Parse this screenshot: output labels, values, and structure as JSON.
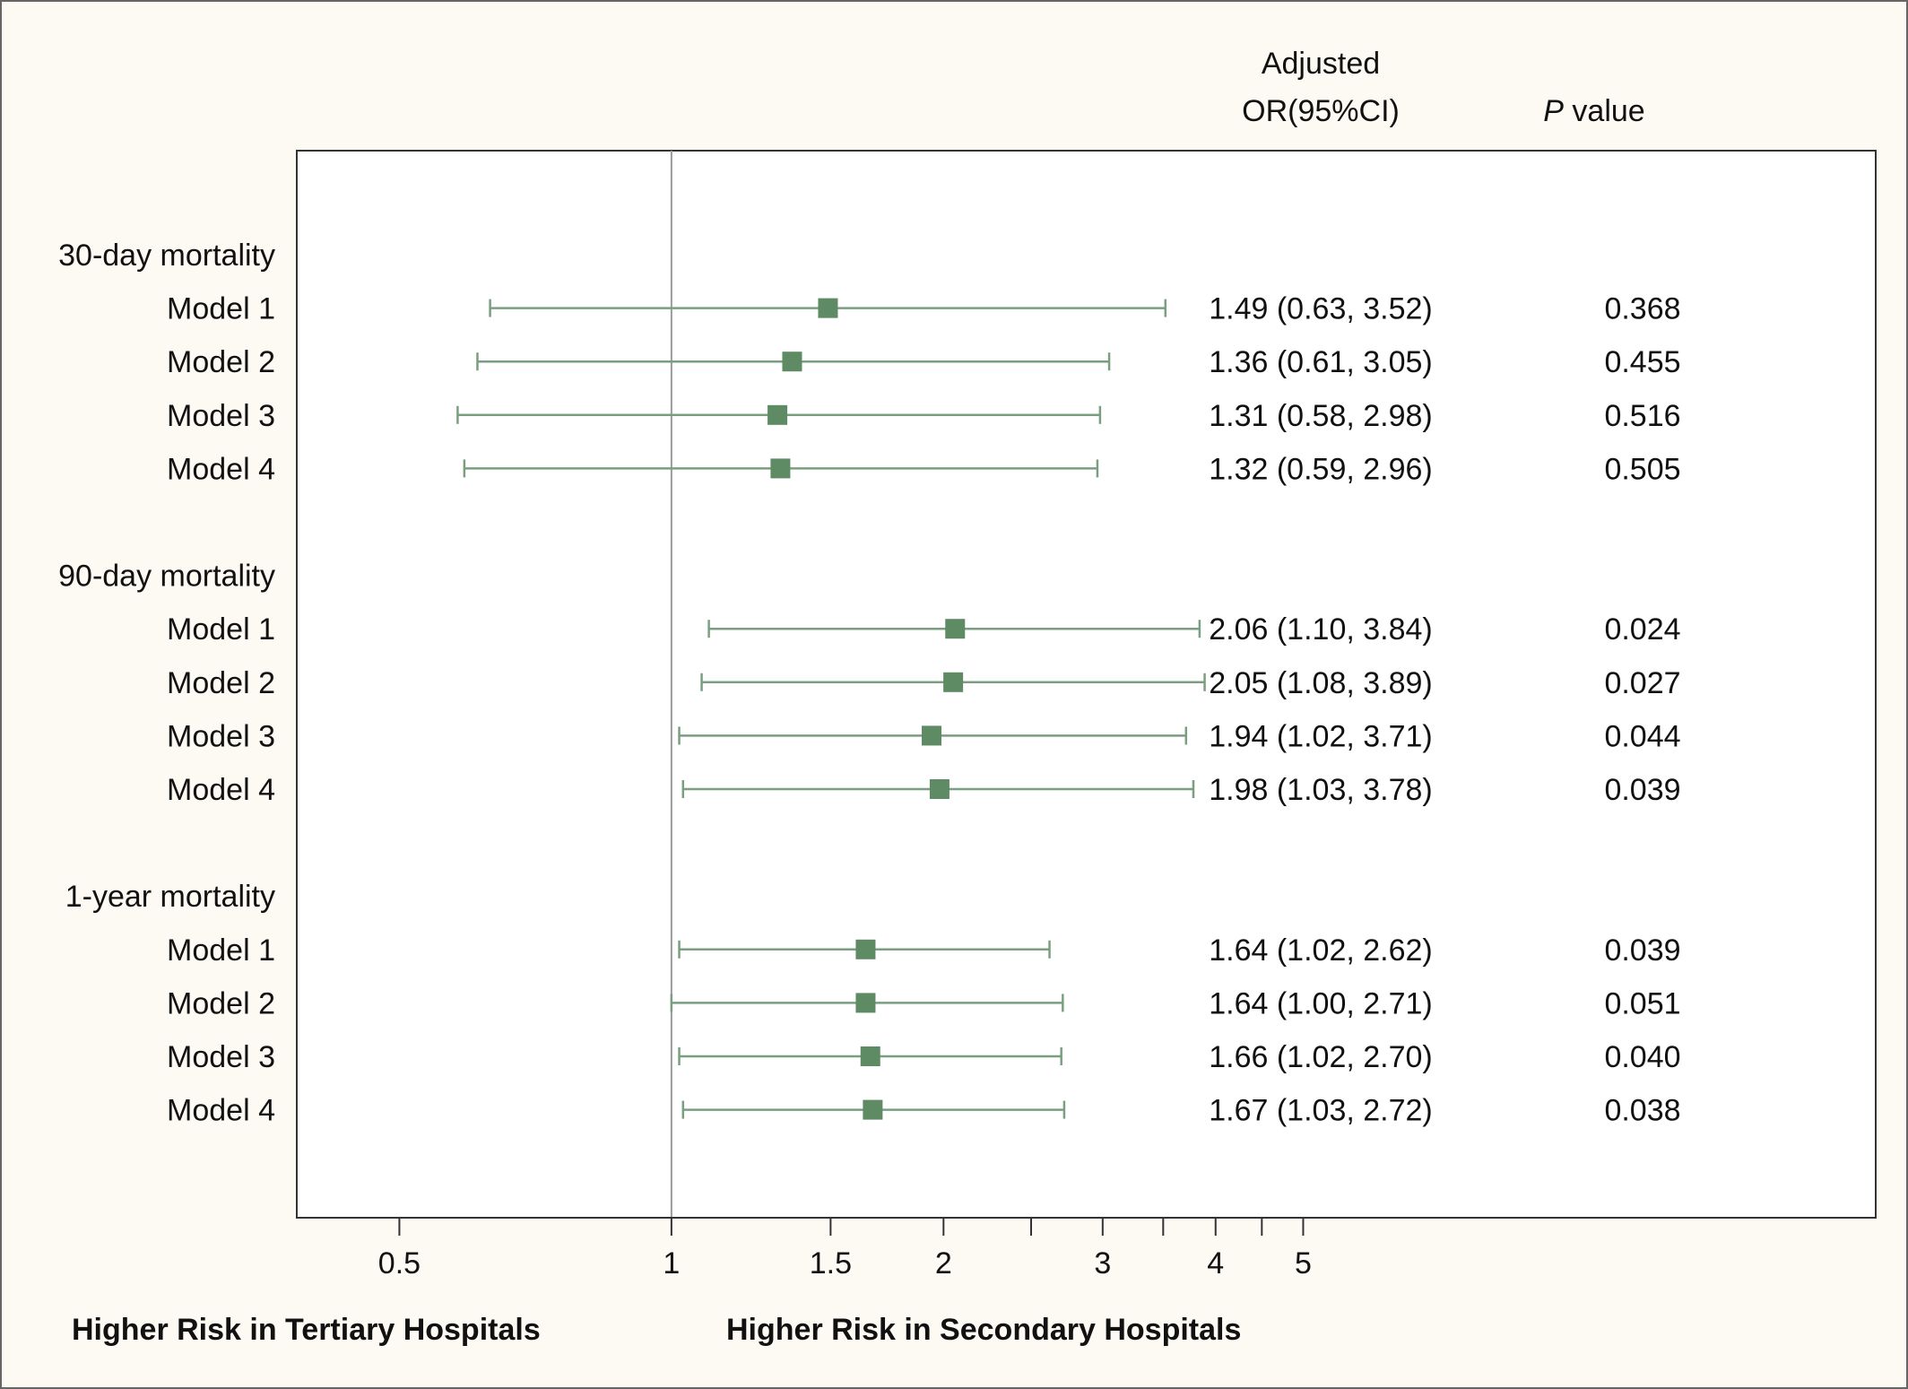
{
  "colors": {
    "background": "#fdfaf3",
    "plot_background": "#ffffff",
    "marker": "#5e8a64",
    "ci_line": "#7a9f80",
    "reference_line": "#9a9a9a",
    "frame": "#333333"
  },
  "header": {
    "or_line1": "Adjusted",
    "or_line2": "OR(95%CI)",
    "p_italic": "P",
    "p_rest": " value"
  },
  "x_axis": {
    "scale": "log",
    "range": [
      0.385,
      21.5
    ],
    "ticks": [
      {
        "value": 0.5,
        "label": "0.5"
      },
      {
        "value": 1,
        "label": "1"
      },
      {
        "value": 1.5,
        "label": "1.5"
      },
      {
        "value": 2,
        "label": "2"
      },
      {
        "value": 2.5,
        "label": ""
      },
      {
        "value": 3,
        "label": "3"
      },
      {
        "value": 3.5,
        "label": ""
      },
      {
        "value": 4,
        "label": "4"
      },
      {
        "value": 4.5,
        "label": ""
      },
      {
        "value": 5,
        "label": "5"
      }
    ],
    "reference_value": 1
  },
  "footer": {
    "left_label": "Higher Risk in Tertiary Hospitals",
    "right_label": "Higher Risk in Secondary Hospitals"
  },
  "chart_data": {
    "type": "forest",
    "xscale": "log",
    "xlabel": "",
    "ylabel": "",
    "groups": [
      {
        "name": "30-day mortality",
        "rows": [
          {
            "label": "Model 1",
            "or": 1.49,
            "lower": 0.63,
            "upper": 3.52,
            "text": "1.49 (0.63, 3.52)",
            "p": "0.368"
          },
          {
            "label": "Model 2",
            "or": 1.36,
            "lower": 0.61,
            "upper": 3.05,
            "text": "1.36 (0.61, 3.05)",
            "p": "0.455"
          },
          {
            "label": "Model 3",
            "or": 1.31,
            "lower": 0.58,
            "upper": 2.98,
            "text": "1.31 (0.58, 2.98)",
            "p": "0.516"
          },
          {
            "label": "Model 4",
            "or": 1.32,
            "lower": 0.59,
            "upper": 2.96,
            "text": "1.32 (0.59, 2.96)",
            "p": "0.505"
          }
        ]
      },
      {
        "name": "90-day mortality",
        "rows": [
          {
            "label": "Model 1",
            "or": 2.06,
            "lower": 1.1,
            "upper": 3.84,
            "text": "2.06 (1.10, 3.84)",
            "p": "0.024"
          },
          {
            "label": "Model 2",
            "or": 2.05,
            "lower": 1.08,
            "upper": 3.89,
            "text": "2.05 (1.08, 3.89)",
            "p": "0.027"
          },
          {
            "label": "Model 3",
            "or": 1.94,
            "lower": 1.02,
            "upper": 3.71,
            "text": "1.94 (1.02, 3.71)",
            "p": "0.044"
          },
          {
            "label": "Model 4",
            "or": 1.98,
            "lower": 1.03,
            "upper": 3.78,
            "text": "1.98 (1.03, 3.78)",
            "p": "0.039"
          }
        ]
      },
      {
        "name": "1-year mortality",
        "rows": [
          {
            "label": "Model 1",
            "or": 1.64,
            "lower": 1.02,
            "upper": 2.62,
            "text": "1.64 (1.02, 2.62)",
            "p": "0.039"
          },
          {
            "label": "Model 2",
            "or": 1.64,
            "lower": 1.0,
            "upper": 2.71,
            "text": "1.64 (1.00, 2.71)",
            "p": "0.051"
          },
          {
            "label": "Model 3",
            "or": 1.66,
            "lower": 1.02,
            "upper": 2.7,
            "text": "1.66 (1.02, 2.70)",
            "p": "0.040"
          },
          {
            "label": "Model 4",
            "or": 1.67,
            "lower": 1.03,
            "upper": 2.72,
            "text": "1.67 (1.03, 2.72)",
            "p": "0.038"
          }
        ]
      }
    ]
  }
}
